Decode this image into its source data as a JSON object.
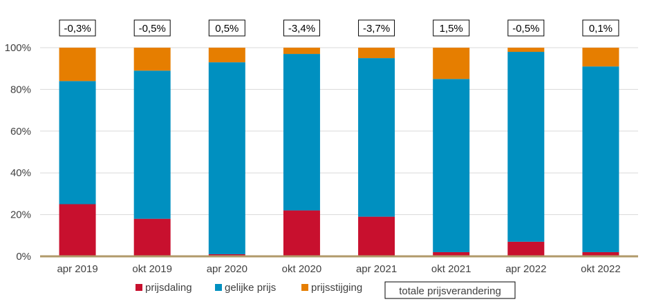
{
  "chart_data": {
    "type": "bar",
    "stacked": true,
    "categories": [
      "apr 2019",
      "okt 2019",
      "apr 2020",
      "okt 2020",
      "apr 2021",
      "okt 2021",
      "apr 2022",
      "okt 2022"
    ],
    "series": [
      {
        "name": "prijsdaling",
        "color": "#c8102e",
        "values": [
          25,
          18,
          1,
          22,
          19,
          2,
          7,
          2
        ]
      },
      {
        "name": "gelijke prijs",
        "color": "#0090c0",
        "values": [
          59,
          71,
          92,
          75,
          76,
          83,
          91,
          89
        ]
      },
      {
        "name": "prijsstijging",
        "color": "#e67e00",
        "values": [
          16,
          11,
          7,
          3,
          5,
          15,
          2,
          9
        ]
      }
    ],
    "totals": {
      "name": "totale prijsverandering",
      "labels": [
        "-0,3%",
        "-0,5%",
        "0,5%",
        "-3,4%",
        "-3,7%",
        "1,5%",
        "-0,5%",
        "0,1%"
      ]
    },
    "y_ticks": [
      "0%",
      "20%",
      "40%",
      "60%",
      "80%",
      "100%"
    ],
    "ylim": [
      0,
      100
    ],
    "y_unit": "%",
    "grid": true,
    "legend_position": "bottom",
    "axis_color": "#b09a6a",
    "grid_color": "#d9d9d9"
  }
}
